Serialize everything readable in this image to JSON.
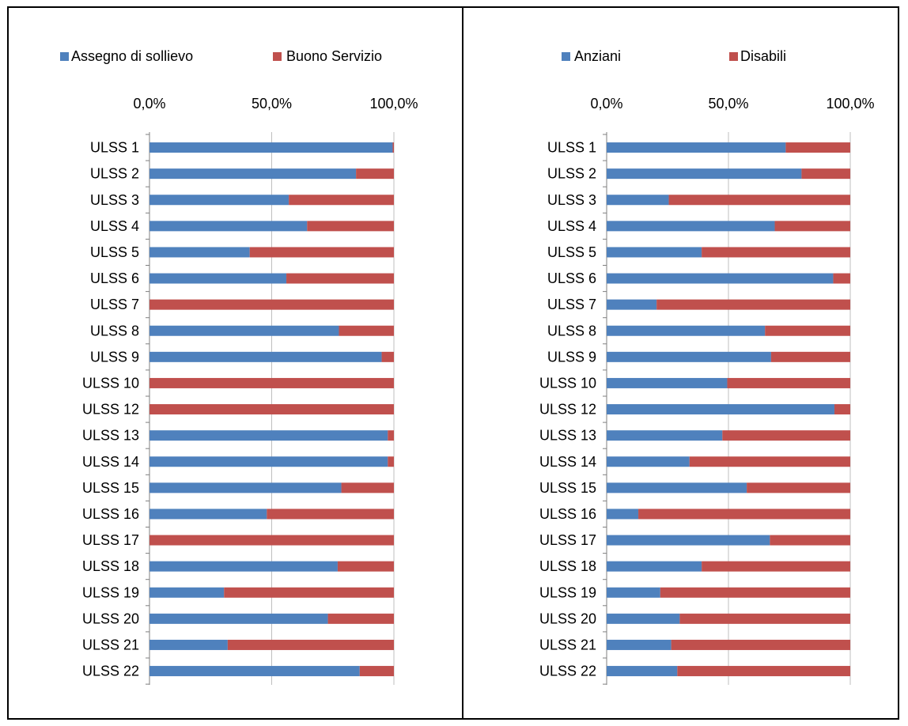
{
  "colors": {
    "series_1": "#4f81bd",
    "series_2": "#c0504d",
    "axis": "#7f7f7f",
    "grid": "#bfbfbf"
  },
  "chart_data": [
    {
      "type": "bar",
      "orientation": "horizontal",
      "stacked": "100%",
      "legend_position": "top",
      "grid": true,
      "xlim": [
        0,
        100
      ],
      "x_ticks": [
        "0,0%",
        "50,0%",
        "100,0%"
      ],
      "categories": [
        "ULSS 1",
        "ULSS 2",
        "ULSS 3",
        "ULSS 4",
        "ULSS 5",
        "ULSS 6",
        "ULSS 7",
        "ULSS 8",
        "ULSS 9",
        "ULSS 10",
        "ULSS 12",
        "ULSS 13",
        "ULSS 14",
        "ULSS 15",
        "ULSS 16",
        "ULSS 17",
        "ULSS 18",
        "ULSS 19",
        "ULSS 20",
        "ULSS 21",
        "ULSS 22"
      ],
      "series": [
        {
          "name": "Assegno di sollievo",
          "color": "#4f81bd",
          "values": [
            99.5,
            84.5,
            57.0,
            64.5,
            41.0,
            56.0,
            0.0,
            77.5,
            95.0,
            0.0,
            0.0,
            97.5,
            97.5,
            78.5,
            48.0,
            0.0,
            77.0,
            30.5,
            73.0,
            32.0,
            86.0
          ]
        },
        {
          "name": "Buono Servizio",
          "color": "#c0504d",
          "values": [
            0.5,
            15.5,
            43.0,
            35.5,
            59.0,
            44.0,
            100.0,
            22.5,
            5.0,
            100.0,
            100.0,
            2.5,
            2.5,
            21.5,
            52.0,
            100.0,
            23.0,
            69.5,
            27.0,
            68.0,
            14.0
          ]
        }
      ]
    },
    {
      "type": "bar",
      "orientation": "horizontal",
      "stacked": "100%",
      "legend_position": "top",
      "grid": true,
      "xlim": [
        0,
        100
      ],
      "x_ticks": [
        "0,0%",
        "50,0%",
        "100,0%"
      ],
      "categories": [
        "ULSS 1",
        "ULSS 2",
        "ULSS 3",
        "ULSS 4",
        "ULSS 5",
        "ULSS 6",
        "ULSS 7",
        "ULSS 8",
        "ULSS 9",
        "ULSS 10",
        "ULSS 12",
        "ULSS 13",
        "ULSS 14",
        "ULSS 15",
        "ULSS 16",
        "ULSS 17",
        "ULSS 18",
        "ULSS 19",
        "ULSS 20",
        "ULSS 21",
        "ULSS 22"
      ],
      "series": [
        {
          "name": "Anziani",
          "color": "#4f81bd",
          "values": [
            73.5,
            80.0,
            25.5,
            69.0,
            39.0,
            93.0,
            20.5,
            65.0,
            67.5,
            49.5,
            93.5,
            47.5,
            34.0,
            57.5,
            13.0,
            67.0,
            39.0,
            22.0,
            30.0,
            26.5,
            29.0
          ]
        },
        {
          "name": "Disabili",
          "color": "#c0504d",
          "values": [
            26.5,
            20.0,
            74.5,
            31.0,
            61.0,
            7.0,
            79.5,
            35.0,
            32.5,
            50.5,
            6.5,
            52.5,
            66.0,
            42.5,
            87.0,
            33.0,
            61.0,
            78.0,
            70.0,
            73.5,
            71.0
          ]
        }
      ]
    }
  ]
}
